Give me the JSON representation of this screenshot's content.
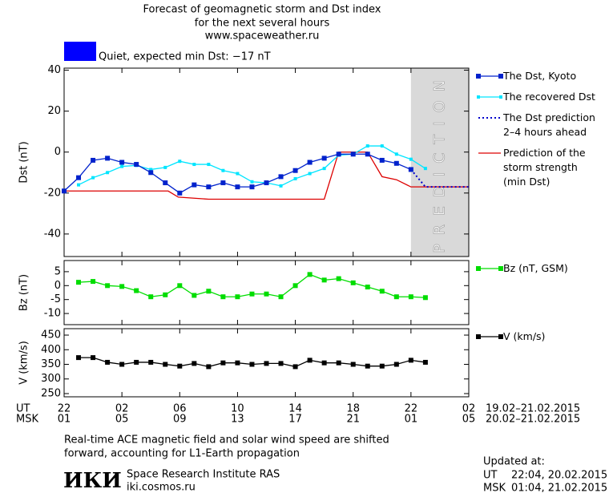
{
  "header": {
    "title_lines": [
      "Forecast of geomagnetic storm and Dst index",
      "for the next several hours",
      "www.spaceweather.ru"
    ],
    "status": "Quiet, expected min Dst: −17 nT",
    "status_color": "#0000ff"
  },
  "x_axis": {
    "xlim": [
      0,
      28
    ],
    "rows": [
      {
        "name": "UT",
        "dates": "19.02–21.02.2015",
        "ticks": [
          {
            "value": 0,
            "label": "22"
          },
          {
            "value": 4,
            "label": "02"
          },
          {
            "value": 8,
            "label": "06"
          },
          {
            "value": 12,
            "label": "10"
          },
          {
            "value": 16,
            "label": "14"
          },
          {
            "value": 20,
            "label": "18"
          },
          {
            "value": 24,
            "label": "22"
          },
          {
            "value": 28,
            "label": "02"
          }
        ]
      },
      {
        "name": "MSK",
        "dates": "20.02–21.02.2015",
        "ticks": [
          {
            "value": 0,
            "label": "01"
          },
          {
            "value": 4,
            "label": "05"
          },
          {
            "value": 8,
            "label": "09"
          },
          {
            "value": 12,
            "label": "13"
          },
          {
            "value": 16,
            "label": "17"
          },
          {
            "value": 20,
            "label": "21"
          },
          {
            "value": 24,
            "label": "01"
          },
          {
            "value": 28,
            "label": "05"
          }
        ]
      }
    ]
  },
  "chart_data": [
    {
      "type": "line",
      "ylabel": "Dst (nT)",
      "ylim": [
        -51,
        41
      ],
      "yticks": [
        -40,
        -20,
        0,
        20,
        40
      ],
      "prediction_band": {
        "x": [
          24,
          28
        ],
        "label": "PREDICTION",
        "color": "#d9d9d9"
      },
      "series": [
        {
          "name": "The Dst, Kyoto",
          "color": "#0022cc",
          "marker": "square",
          "linestyle": "solid",
          "x": [
            0,
            1,
            2,
            3,
            4,
            5,
            6,
            7,
            8,
            9,
            10,
            11,
            12,
            13,
            14,
            15,
            16,
            17,
            18,
            19,
            20,
            21,
            22,
            23,
            24
          ],
          "values": [
            -19,
            -12.5,
            -4,
            -3,
            -5,
            -6,
            -10,
            -15,
            -20,
            -16,
            -17,
            -15,
            -17,
            -17,
            -15,
            -12,
            -9,
            -5,
            -3,
            -1,
            -1,
            -1,
            -4,
            -5.5,
            -8.5
          ]
        },
        {
          "name": "The recovered Dst",
          "color": "#00e5ff",
          "marker": "small-square",
          "linestyle": "solid",
          "x": [
            1,
            2,
            3,
            4,
            5,
            6,
            7,
            8,
            9,
            10,
            11,
            12,
            13,
            14,
            15,
            16,
            17,
            18,
            19,
            20,
            21,
            22,
            23,
            24,
            25
          ],
          "values": [
            -16,
            -12.5,
            -10,
            -7,
            -6.5,
            -8.5,
            -7.5,
            -4.5,
            -6,
            -6,
            -9,
            -10.5,
            -14.5,
            -15,
            -16.5,
            -13,
            -10.5,
            -8,
            -1.5,
            -1,
            3,
            3,
            -1,
            -3.5,
            -8
          ]
        },
        {
          "name": "The Dst prediction\n2–4 hours ahead",
          "color": "#0000cc",
          "marker": "none",
          "linestyle": "dotted",
          "x": [
            24,
            25,
            28
          ],
          "values": [
            -8.5,
            -17,
            -17
          ]
        },
        {
          "name": "Prediction of the\nstorm strength\n(min Dst)",
          "color": "#dd0000",
          "marker": "none",
          "linestyle": "solid",
          "x": [
            0,
            7.2,
            7.9,
            10,
            18,
            19,
            21,
            22,
            23,
            24,
            28
          ],
          "values": [
            -19,
            -19,
            -22,
            -23,
            -23,
            0,
            0,
            -12,
            -13.5,
            -17,
            -17
          ]
        }
      ]
    },
    {
      "type": "line",
      "ylabel": "Bz (nT)",
      "ylim": [
        -14,
        9
      ],
      "yticks": [
        -10,
        -5,
        0,
        5
      ],
      "series": [
        {
          "name": "Bz (nT, GSM)",
          "color": "#00dd00",
          "marker": "square",
          "linestyle": "solid",
          "x": [
            1,
            2,
            3,
            4,
            5,
            6,
            7,
            8,
            9,
            10,
            11,
            12,
            13,
            14,
            15,
            16,
            17,
            18,
            19,
            20,
            21,
            22,
            23,
            24,
            25
          ],
          "values": [
            1.2,
            1.5,
            0,
            -0.3,
            -1.8,
            -4,
            -3.3,
            0,
            -3.5,
            -2,
            -4,
            -4,
            -3,
            -3,
            -4,
            0,
            4,
            2,
            2.5,
            1,
            -0.5,
            -2,
            -4,
            -4,
            -4.3
          ]
        }
      ]
    },
    {
      "type": "line",
      "ylabel": "V (km/s)",
      "ylim": [
        239,
        472
      ],
      "yticks": [
        250,
        300,
        350,
        400,
        450
      ],
      "series": [
        {
          "name": "V (km/s)",
          "color": "#000000",
          "marker": "square",
          "linestyle": "solid",
          "x": [
            1,
            2,
            3,
            4,
            5,
            6,
            7,
            8,
            9,
            10,
            11,
            12,
            13,
            14,
            15,
            16,
            17,
            18,
            19,
            20,
            21,
            22,
            23,
            24,
            25
          ],
          "values": [
            373,
            373,
            357,
            350,
            357,
            357,
            350,
            344,
            353,
            342,
            355,
            355,
            350,
            353,
            353,
            342,
            364,
            355,
            355,
            350,
            344,
            344,
            350,
            364,
            357
          ]
        }
      ]
    }
  ],
  "footer": {
    "note_lines": [
      "Real-time ACE magnetic field and solar wind speed are shifted",
      "forward, accounting for L1-Earth propagation"
    ],
    "logo": "ИКИ",
    "institute": "Space Research Institute RAS",
    "site": "iki.cosmos.ru",
    "updated": {
      "label": "Updated at:",
      "rows": [
        {
          "zone": "UT",
          "time": "22:04, 20.02.2015"
        },
        {
          "zone": "MSK",
          "time": "01:04, 21.02.2015"
        }
      ]
    }
  }
}
